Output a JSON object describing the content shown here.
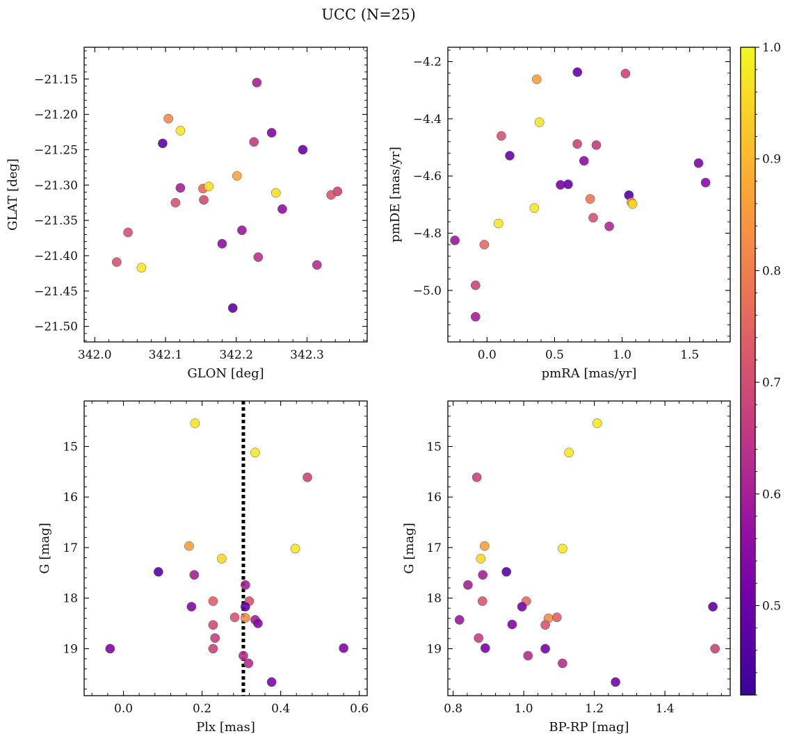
{
  "title": "UCC (N=25)",
  "colorbar": {
    "colormap": "plasma",
    "vmin": 0.42,
    "vmax": 1.0,
    "ticks": [
      0.5,
      0.6,
      0.7,
      0.8,
      0.9,
      1.0
    ],
    "tick_labels": [
      "0.5",
      "0.6",
      "0.7",
      "0.8",
      "0.9",
      "1.0"
    ]
  },
  "chart_data": [
    {
      "type": "scatter",
      "id": "glon-glat",
      "xlabel": "GLON [deg]",
      "ylabel": "GLAT [deg]",
      "xlim": [
        341.985,
        342.385
      ],
      "ylim": [
        -21.522,
        -21.105
      ],
      "xticks": [
        342.0,
        342.1,
        342.2,
        342.3
      ],
      "xtick_labels": [
        "342.0",
        "342.1",
        "342.2",
        "342.3"
      ],
      "yticks": [
        -21.15,
        -21.2,
        -21.25,
        -21.3,
        -21.35,
        -21.4,
        -21.45,
        -21.5
      ],
      "ytick_labels": [
        "−21.15",
        "−21.20",
        "−21.25",
        "−21.30",
        "−21.35",
        "−21.40",
        "−21.45",
        "−21.50"
      ],
      "points": [
        {
          "x": 342.229,
          "y": -21.155,
          "c": 0.6
        },
        {
          "x": 342.104,
          "y": -21.206,
          "c": 0.82
        },
        {
          "x": 342.121,
          "y": -21.223,
          "c": 0.97
        },
        {
          "x": 342.096,
          "y": -21.241,
          "c": 0.48
        },
        {
          "x": 342.225,
          "y": -21.239,
          "c": 0.66
        },
        {
          "x": 342.25,
          "y": -21.226,
          "c": 0.54
        },
        {
          "x": 342.294,
          "y": -21.25,
          "c": 0.5
        },
        {
          "x": 342.201,
          "y": -21.287,
          "c": 0.87
        },
        {
          "x": 342.121,
          "y": -21.304,
          "c": 0.6
        },
        {
          "x": 342.153,
          "y": -21.305,
          "c": 0.76
        },
        {
          "x": 342.161,
          "y": -21.302,
          "c": 0.96
        },
        {
          "x": 342.256,
          "y": -21.311,
          "c": 0.96
        },
        {
          "x": 342.154,
          "y": -21.321,
          "c": 0.7
        },
        {
          "x": 342.114,
          "y": -21.325,
          "c": 0.71
        },
        {
          "x": 342.334,
          "y": -21.314,
          "c": 0.72
        },
        {
          "x": 342.343,
          "y": -21.309,
          "c": 0.68
        },
        {
          "x": 342.265,
          "y": -21.334,
          "c": 0.56
        },
        {
          "x": 342.047,
          "y": -21.367,
          "c": 0.71
        },
        {
          "x": 342.208,
          "y": -21.364,
          "c": 0.58
        },
        {
          "x": 342.18,
          "y": -21.383,
          "c": 0.56
        },
        {
          "x": 342.231,
          "y": -21.402,
          "c": 0.64
        },
        {
          "x": 342.031,
          "y": -21.409,
          "c": 0.71
        },
        {
          "x": 342.066,
          "y": -21.417,
          "c": 0.97
        },
        {
          "x": 342.314,
          "y": -21.413,
          "c": 0.63
        },
        {
          "x": 342.195,
          "y": -21.474,
          "c": 0.48
        }
      ]
    },
    {
      "type": "scatter",
      "id": "pmra-pmde",
      "xlabel": "pmRA [mas/yr]",
      "ylabel": "pmDE [mas/yr]",
      "xlim": [
        -0.29,
        1.8
      ],
      "ylim": [
        -5.18,
        -4.15
      ],
      "xticks": [
        0.0,
        0.5,
        1.0,
        1.5
      ],
      "xtick_labels": [
        "0.0",
        "0.5",
        "1.0",
        "1.5"
      ],
      "yticks": [
        -4.2,
        -4.4,
        -4.6,
        -4.8,
        -5.0
      ],
      "ytick_labels": [
        "−4.2",
        "−4.4",
        "−4.6",
        "−4.8",
        "−5.0"
      ],
      "points": [
        {
          "x": 0.669,
          "y": -4.237,
          "c": 0.5
        },
        {
          "x": 0.368,
          "y": -4.262,
          "c": 0.86
        },
        {
          "x": 1.025,
          "y": -4.242,
          "c": 0.68
        },
        {
          "x": 0.388,
          "y": -4.412,
          "c": 0.97
        },
        {
          "x": 0.106,
          "y": -4.46,
          "c": 0.71
        },
        {
          "x": 0.668,
          "y": -4.488,
          "c": 0.68
        },
        {
          "x": 0.809,
          "y": -4.492,
          "c": 0.66
        },
        {
          "x": 0.168,
          "y": -4.529,
          "c": 0.5
        },
        {
          "x": 0.718,
          "y": -4.547,
          "c": 0.56
        },
        {
          "x": 1.566,
          "y": -4.555,
          "c": 0.53
        },
        {
          "x": 1.618,
          "y": -4.623,
          "c": 0.55
        },
        {
          "x": 0.544,
          "y": -4.631,
          "c": 0.52
        },
        {
          "x": 0.6,
          "y": -4.629,
          "c": 0.5
        },
        {
          "x": 1.05,
          "y": -4.667,
          "c": 0.46
        },
        {
          "x": 0.763,
          "y": -4.68,
          "c": 0.79
        },
        {
          "x": 1.069,
          "y": -4.692,
          "c": 0.84
        },
        {
          "x": 1.077,
          "y": -4.698,
          "c": 0.95
        },
        {
          "x": 0.35,
          "y": -4.712,
          "c": 0.97
        },
        {
          "x": 0.786,
          "y": -4.746,
          "c": 0.71
        },
        {
          "x": 0.084,
          "y": -4.766,
          "c": 0.97
        },
        {
          "x": 0.905,
          "y": -4.776,
          "c": 0.62
        },
        {
          "x": -0.238,
          "y": -4.825,
          "c": 0.58
        },
        {
          "x": -0.02,
          "y": -4.84,
          "c": 0.76
        },
        {
          "x": -0.085,
          "y": -4.982,
          "c": 0.68
        },
        {
          "x": -0.085,
          "y": -5.092,
          "c": 0.6
        }
      ]
    },
    {
      "type": "scatter",
      "id": "plx-g",
      "xlabel": "Plx [mas]",
      "ylabel": "G [mag]",
      "xlim": [
        -0.1,
        0.62
      ],
      "ylim": [
        19.93,
        14.1
      ],
      "xticks": [
        0.0,
        0.2,
        0.4,
        0.6
      ],
      "xtick_labels": [
        "0.0",
        "0.2",
        "0.4",
        "0.6"
      ],
      "yticks": [
        15,
        16,
        17,
        18,
        19
      ],
      "ytick_labels": [
        "15",
        "16",
        "17",
        "18",
        "19"
      ],
      "vline": 0.305,
      "points": [
        {
          "x": 0.182,
          "y": 14.54,
          "c": 0.97
        },
        {
          "x": 0.335,
          "y": 15.12,
          "c": 0.97
        },
        {
          "x": 0.468,
          "y": 15.61,
          "c": 0.68
        },
        {
          "x": 0.167,
          "y": 16.97,
          "c": 0.86
        },
        {
          "x": 0.25,
          "y": 17.22,
          "c": 0.95
        },
        {
          "x": 0.437,
          "y": 17.02,
          "c": 0.97
        },
        {
          "x": 0.089,
          "y": 17.48,
          "c": 0.47
        },
        {
          "x": 0.18,
          "y": 17.54,
          "c": 0.6
        },
        {
          "x": 0.31,
          "y": 17.74,
          "c": 0.6
        },
        {
          "x": 0.228,
          "y": 18.06,
          "c": 0.74
        },
        {
          "x": 0.32,
          "y": 18.06,
          "c": 0.72
        },
        {
          "x": 0.173,
          "y": 18.17,
          "c": 0.54
        },
        {
          "x": 0.31,
          "y": 18.17,
          "c": 0.48
        },
        {
          "x": 0.283,
          "y": 18.38,
          "c": 0.72
        },
        {
          "x": 0.31,
          "y": 18.39,
          "c": 0.83
        },
        {
          "x": 0.335,
          "y": 18.43,
          "c": 0.6
        },
        {
          "x": 0.342,
          "y": 18.5,
          "c": 0.54
        },
        {
          "x": 0.228,
          "y": 18.53,
          "c": 0.7
        },
        {
          "x": 0.233,
          "y": 18.79,
          "c": 0.67
        },
        {
          "x": -0.034,
          "y": 19.0,
          "c": 0.53
        },
        {
          "x": 0.228,
          "y": 19.0,
          "c": 0.68
        },
        {
          "x": 0.56,
          "y": 18.99,
          "c": 0.53
        },
        {
          "x": 0.305,
          "y": 19.14,
          "c": 0.63
        },
        {
          "x": 0.318,
          "y": 19.29,
          "c": 0.63
        },
        {
          "x": 0.377,
          "y": 19.66,
          "c": 0.53
        }
      ]
    },
    {
      "type": "scatter",
      "id": "bprp-g",
      "xlabel": "BP-RP [mag]",
      "ylabel": "G [mag]",
      "xlim": [
        0.785,
        1.585
      ],
      "ylim": [
        19.93,
        14.1
      ],
      "xticks": [
        0.8,
        1.0,
        1.2,
        1.4
      ],
      "xtick_labels": [
        "0.8",
        "1.0",
        "1.2",
        "1.4"
      ],
      "yticks": [
        15,
        16,
        17,
        18,
        19
      ],
      "ytick_labels": [
        "15",
        "16",
        "17",
        "18",
        "19"
      ],
      "points": [
        {
          "x": 1.208,
          "y": 14.54,
          "c": 0.97
        },
        {
          "x": 1.128,
          "y": 15.12,
          "c": 0.97
        },
        {
          "x": 0.867,
          "y": 15.61,
          "c": 0.68
        },
        {
          "x": 0.889,
          "y": 16.97,
          "c": 0.86
        },
        {
          "x": 0.878,
          "y": 17.22,
          "c": 0.95
        },
        {
          "x": 1.11,
          "y": 17.02,
          "c": 0.97
        },
        {
          "x": 0.951,
          "y": 17.48,
          "c": 0.47
        },
        {
          "x": 0.884,
          "y": 17.54,
          "c": 0.6
        },
        {
          "x": 0.842,
          "y": 17.74,
          "c": 0.6
        },
        {
          "x": 0.883,
          "y": 18.06,
          "c": 0.72
        },
        {
          "x": 1.007,
          "y": 18.06,
          "c": 0.76
        },
        {
          "x": 0.995,
          "y": 18.17,
          "c": 0.52
        },
        {
          "x": 1.536,
          "y": 18.17,
          "c": 0.48
        },
        {
          "x": 1.07,
          "y": 18.4,
          "c": 0.83
        },
        {
          "x": 1.094,
          "y": 18.38,
          "c": 0.74
        },
        {
          "x": 0.818,
          "y": 18.43,
          "c": 0.58
        },
        {
          "x": 0.967,
          "y": 18.52,
          "c": 0.54
        },
        {
          "x": 1.061,
          "y": 18.53,
          "c": 0.72
        },
        {
          "x": 0.872,
          "y": 18.79,
          "c": 0.67
        },
        {
          "x": 0.891,
          "y": 18.99,
          "c": 0.52
        },
        {
          "x": 1.061,
          "y": 19.0,
          "c": 0.52
        },
        {
          "x": 1.542,
          "y": 19.0,
          "c": 0.68
        },
        {
          "x": 1.012,
          "y": 19.14,
          "c": 0.63
        },
        {
          "x": 1.11,
          "y": 19.29,
          "c": 0.63
        },
        {
          "x": 1.26,
          "y": 19.66,
          "c": 0.52
        }
      ]
    }
  ]
}
